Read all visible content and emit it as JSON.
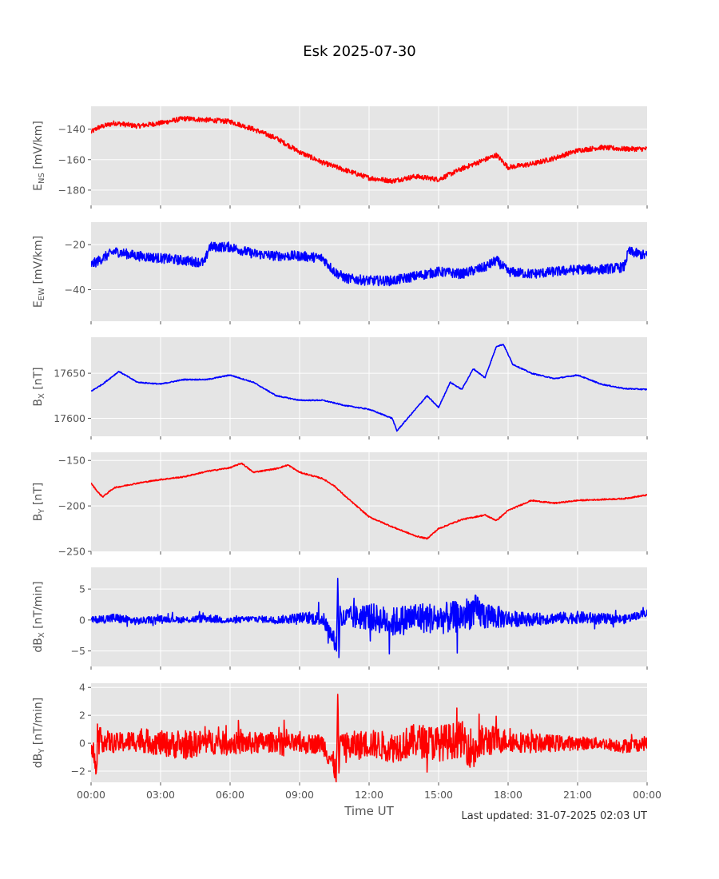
{
  "chart_data": {
    "type": "line",
    "title": "Esk 2025-07-30",
    "xlabel": "Time UT",
    "x_ticks": [
      "00:00",
      "03:00",
      "06:00",
      "09:00",
      "12:00",
      "15:00",
      "18:00",
      "21:00",
      "00:00"
    ],
    "x_range_hours": [
      0,
      24
    ],
    "grid": true,
    "footnote": "Last updated: 31-07-2025 02:03 UT",
    "panels": [
      {
        "ylabel_main": "E",
        "ylabel_sub": "NS",
        "ylabel_unit": " [mV/km]",
        "color": "#ff0000",
        "ylim": [
          -190,
          -125
        ],
        "yticks": [
          -180,
          -160,
          -140
        ],
        "noise": 1.6,
        "hours": [
          0,
          0.3,
          1,
          2,
          3,
          4,
          5,
          6,
          7,
          8,
          9,
          10,
          11,
          12,
          13,
          14,
          15,
          16,
          17,
          17.5,
          18,
          19,
          20,
          21,
          22,
          23,
          24
        ],
        "values": [
          -142,
          -139,
          -136,
          -138,
          -136,
          -133,
          -134,
          -135,
          -140,
          -146,
          -155,
          -162,
          -167,
          -172,
          -174,
          -171,
          -173,
          -166,
          -160,
          -157,
          -165,
          -163,
          -159,
          -154,
          -152,
          -153,
          -153
        ]
      },
      {
        "ylabel_main": "E",
        "ylabel_sub": "EW",
        "ylabel_unit": " [mV/km]",
        "color": "#0000ff",
        "ylim": [
          -54,
          -10
        ],
        "yticks": [
          -40,
          -20
        ],
        "noise": 2.2,
        "hours": [
          0,
          0.5,
          1,
          2,
          3,
          4,
          4.9,
          5.1,
          6,
          7,
          8,
          9,
          10,
          10.5,
          11,
          12,
          13,
          14,
          15,
          16,
          17,
          17.5,
          18,
          19,
          20,
          21,
          22,
          23,
          23.2,
          24
        ],
        "values": [
          -29,
          -26,
          -23,
          -25,
          -26,
          -27,
          -28,
          -21,
          -21,
          -24,
          -25,
          -25,
          -26,
          -32,
          -35,
          -36,
          -36,
          -34,
          -32,
          -33,
          -30,
          -27,
          -32,
          -33,
          -32,
          -31,
          -31,
          -30,
          -23,
          -25
        ]
      },
      {
        "ylabel_main": "B",
        "ylabel_sub": "X",
        "ylabel_unit": " [nT]",
        "color": "#0000ff",
        "ylim": [
          17580,
          17690
        ],
        "yticks": [
          17600,
          17650
        ],
        "noise": 0.6,
        "hours": [
          0,
          0.5,
          1.2,
          2,
          3,
          4,
          5,
          6,
          7,
          8,
          9,
          10,
          11,
          12,
          13,
          13.2,
          14,
          14.5,
          15,
          15.5,
          16,
          16.5,
          17,
          17.5,
          17.8,
          18.2,
          19,
          20,
          21,
          22,
          23,
          24
        ],
        "values": [
          17630,
          17638,
          17652,
          17640,
          17638,
          17643,
          17643,
          17648,
          17640,
          17625,
          17620,
          17620,
          17614,
          17610,
          17600,
          17586,
          17610,
          17625,
          17612,
          17640,
          17632,
          17655,
          17645,
          17680,
          17682,
          17660,
          17650,
          17644,
          17648,
          17638,
          17633,
          17632
        ]
      },
      {
        "ylabel_main": "B",
        "ylabel_sub": "Y",
        "ylabel_unit": " [nT]",
        "color": "#ff0000",
        "ylim": [
          -250,
          -141
        ],
        "yticks": [
          -250,
          -200,
          -150
        ],
        "noise": 0.7,
        "hours": [
          0,
          0.3,
          0.5,
          1,
          2,
          3,
          4,
          5,
          6,
          6.5,
          7,
          8,
          8.5,
          9,
          10,
          10.5,
          11,
          12,
          13,
          14,
          14.5,
          15,
          16,
          17,
          17.5,
          18,
          19,
          20,
          21,
          22,
          23,
          24
        ],
        "values": [
          -175,
          -185,
          -190,
          -180,
          -175,
          -171,
          -168,
          -162,
          -158,
          -153,
          -163,
          -159,
          -155,
          -163,
          -170,
          -178,
          -190,
          -212,
          -223,
          -233,
          -236,
          -225,
          -215,
          -210,
          -216,
          -205,
          -194,
          -197,
          -194,
          -193,
          -192,
          -188
        ]
      },
      {
        "ylabel_main": "dB",
        "ylabel_sub": "X",
        "ylabel_unit": " [nT/min]",
        "color": "#0000ff",
        "ylim": [
          -7.5,
          8.5
        ],
        "yticks": [
          -5,
          0,
          5
        ],
        "noise": 0,
        "spike_amp": 0.9,
        "hours": [
          0,
          1,
          2,
          3,
          4,
          5,
          6,
          7,
          8,
          9,
          10,
          10.6,
          10.65,
          10.7,
          10.75,
          10.8,
          11,
          12,
          13,
          14,
          15,
          16,
          16.5,
          17,
          18,
          19,
          20,
          21,
          22,
          23,
          24
        ],
        "values": [
          0,
          0.3,
          -0.2,
          0.2,
          0,
          0.3,
          -0.1,
          0.2,
          0,
          0.4,
          0.2,
          -4,
          7.8,
          -6.9,
          2.5,
          0,
          0.3,
          0.6,
          -0.4,
          0.5,
          0.2,
          0.6,
          1.5,
          0.8,
          0.2,
          0.1,
          0.3,
          0.4,
          0.2,
          0.1,
          1.2
        ],
        "spread": [
          0.5,
          0.8,
          0.6,
          0.5,
          0.5,
          0.7,
          0.5,
          0.5,
          0.6,
          0.8,
          1.2,
          1.5,
          0,
          0,
          0,
          1.6,
          1.8,
          2.2,
          2.4,
          2.5,
          2.5,
          2.6,
          2.8,
          2.4,
          1.4,
          1.0,
          0.9,
          1.0,
          0.9,
          0.7,
          0.6
        ]
      },
      {
        "ylabel_main": "dB",
        "ylabel_sub": "Y",
        "ylabel_unit": " [nT/min]",
        "color": "#ff0000",
        "ylim": [
          -2.8,
          4.3
        ],
        "yticks": [
          -2,
          0,
          2,
          4
        ],
        "noise": 0,
        "spike_amp": 0.9,
        "hours": [
          0,
          0.2,
          0.3,
          1,
          2,
          3,
          4,
          5,
          6,
          7,
          8,
          9,
          10,
          10.6,
          10.65,
          10.7,
          10.75,
          11,
          12,
          13,
          14,
          15,
          16,
          16.5,
          17,
          18,
          19,
          20,
          21,
          22,
          23,
          24
        ],
        "values": [
          0,
          -1.5,
          0.3,
          0,
          0.2,
          0,
          -0.2,
          0.1,
          0,
          0,
          0.1,
          -0.1,
          0,
          -2,
          4,
          -2.5,
          0.5,
          -0.3,
          0,
          -0.3,
          0.2,
          0,
          0.3,
          -0.5,
          0.2,
          0.2,
          0,
          0,
          0,
          0,
          -0.2,
          0
        ],
        "spread": [
          0.8,
          1.2,
          0.9,
          0.7,
          0.8,
          0.9,
          1.0,
          0.9,
          0.8,
          0.8,
          0.7,
          0.7,
          0.7,
          1.0,
          0,
          0,
          0,
          1.1,
          1.0,
          1.1,
          1.2,
          1.3,
          1.3,
          1.6,
          1.2,
          0.8,
          0.7,
          0.6,
          0.5,
          0.4,
          0.5,
          0.5
        ]
      }
    ]
  }
}
